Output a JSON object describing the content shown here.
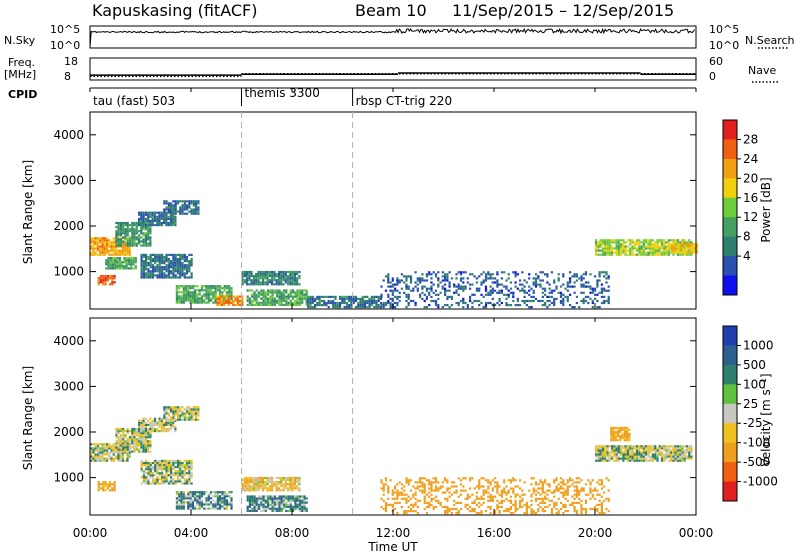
{
  "header": {
    "station": "Kapuskasing (fitACF)",
    "beam": "Beam 10",
    "date_range": "11/Sep/2015 – 12/Sep/2015"
  },
  "strips": {
    "nsky": {
      "label": "N.Sky",
      "right_label": "N.Search",
      "left_ticks": [
        "10^5",
        "10^0"
      ],
      "right_ticks": [
        "10^5",
        "10^0"
      ]
    },
    "freq": {
      "label": "Freq.",
      "unit": "[MHz]",
      "left_ticks": [
        "18",
        "8"
      ],
      "right_ticks": [
        "60",
        "0"
      ],
      "right_label": "Nave",
      "freq_segments": [
        {
          "start": 0.0,
          "end": 6.0,
          "mhz": 10.2
        },
        {
          "start": 6.0,
          "end": 12.2,
          "mhz": 10.6
        },
        {
          "start": 12.2,
          "end": 21.8,
          "mhz": 11.2
        },
        {
          "start": 21.8,
          "end": 24.0,
          "mhz": 10.6
        }
      ],
      "nave_segments": [
        {
          "start": 0.0,
          "end": 6.0,
          "value": 10
        },
        {
          "start": 6.0,
          "end": 24.0,
          "value": 17
        }
      ]
    },
    "cpid": {
      "label": "CPID",
      "modes": [
        {
          "name": "tau (fast) 503",
          "start": 0.0
        },
        {
          "name": "themis 3300",
          "start": 6.0
        },
        {
          "name": "rbsp CT-trig 220",
          "start": 10.4
        }
      ]
    }
  },
  "panels": {
    "power": {
      "ylabel": "Slant Range [km]",
      "cbar_label": "Power [dB]",
      "cbar_ticks": [
        "28",
        "24",
        "20",
        "16",
        "12",
        "8",
        "4"
      ],
      "colors": [
        "#1010ee",
        "#2c50b0",
        "#2f7f6f",
        "#44a060",
        "#6ccc3a",
        "#f0d010",
        "#f0a010",
        "#f06010",
        "#e02020"
      ]
    },
    "velocity": {
      "ylabel": "Slant Range [km]",
      "cbar_label": "Velocity [m s⁻¹]",
      "cbar_ticks": [
        "1000",
        "500",
        "100",
        "25",
        "-25",
        "-100",
        "-500",
        "-1000"
      ],
      "colors": [
        "#2040b0",
        "#2c6090",
        "#2f7f6f",
        "#60c040",
        "#c8c8c0",
        "#f0c020",
        "#f0a020",
        "#f06010",
        "#e02020"
      ]
    }
  },
  "chart_data": {
    "type": "heatmap",
    "title": "Kapuskasing (fitACF)  Beam 10  11/Sep/2015 – 12/Sep/2015",
    "xlabel": "Time UT",
    "x_ticks": [
      "00:00",
      "04:00",
      "08:00",
      "12:00",
      "16:00",
      "20:00",
      "00:00"
    ],
    "xlim": [
      0,
      24
    ],
    "ylabel": "Slant Range [km]",
    "ylim": [
      180,
      4500
    ],
    "y_ticks": [
      1000,
      2000,
      3000,
      4000
    ],
    "mode_changes_ut": [
      6.0,
      10.4
    ],
    "power_regions": [
      {
        "t0": 0.0,
        "t1": 1.6,
        "r0": 1350,
        "r1": 1750,
        "db": 22
      },
      {
        "t0": 0.3,
        "t1": 1.0,
        "r0": 700,
        "r1": 900,
        "db": 26
      },
      {
        "t0": 0.6,
        "t1": 1.8,
        "r0": 1050,
        "r1": 1300,
        "db": 12
      },
      {
        "t0": 1.0,
        "t1": 2.4,
        "r0": 1550,
        "r1": 2050,
        "db": 10
      },
      {
        "t0": 1.9,
        "t1": 3.4,
        "r0": 2000,
        "r1": 2300,
        "db": 6
      },
      {
        "t0": 2.9,
        "t1": 4.3,
        "r0": 2250,
        "r1": 2550,
        "db": 6
      },
      {
        "t0": 2.0,
        "t1": 4.0,
        "r0": 850,
        "r1": 1350,
        "db": 6
      },
      {
        "t0": 3.4,
        "t1": 5.6,
        "r0": 300,
        "r1": 700,
        "db": 12
      },
      {
        "t0": 5.0,
        "t1": 6.0,
        "r0": 250,
        "r1": 450,
        "db": 24
      },
      {
        "t0": 6.0,
        "t1": 8.3,
        "r0": 700,
        "r1": 1000,
        "db": 8
      },
      {
        "t0": 6.2,
        "t1": 8.6,
        "r0": 250,
        "r1": 600,
        "db": 12
      },
      {
        "t0": 8.6,
        "t1": 11.5,
        "r0": 200,
        "r1": 450,
        "db": 6
      },
      {
        "t0": 11.5,
        "t1": 20.5,
        "r0": 200,
        "r1": 1000,
        "db": 5
      },
      {
        "t0": 20.0,
        "t1": 23.8,
        "r0": 1350,
        "r1": 1700,
        "db": 16
      },
      {
        "t0": 23.0,
        "t1": 24.0,
        "r0": 1400,
        "r1": 1600,
        "db": 20
      }
    ],
    "velocity_regions": [
      {
        "t0": 0.0,
        "t1": 1.6,
        "r0": 1350,
        "r1": 1750,
        "v": 0
      },
      {
        "t0": 0.3,
        "t1": 1.0,
        "r0": 700,
        "r1": 900,
        "v": -150
      },
      {
        "t0": 1.0,
        "t1": 2.4,
        "r0": 1550,
        "r1": 2050,
        "v": 0
      },
      {
        "t0": 1.9,
        "t1": 3.4,
        "r0": 2000,
        "r1": 2300,
        "v": 0
      },
      {
        "t0": 2.9,
        "t1": 4.3,
        "r0": 2250,
        "r1": 2550,
        "v": 0
      },
      {
        "t0": 2.0,
        "t1": 4.0,
        "r0": 850,
        "r1": 1350,
        "v": 0
      },
      {
        "t0": 3.4,
        "t1": 5.6,
        "r0": 300,
        "r1": 700,
        "v": 60
      },
      {
        "t0": 6.0,
        "t1": 8.3,
        "r0": 700,
        "r1": 1000,
        "v": -60
      },
      {
        "t0": 6.2,
        "t1": 8.6,
        "r0": 250,
        "r1": 600,
        "v": 80
      },
      {
        "t0": 11.5,
        "t1": 20.5,
        "r0": 200,
        "r1": 1000,
        "v": -200
      },
      {
        "t0": 20.0,
        "t1": 23.8,
        "r0": 1350,
        "r1": 1700,
        "v": 0
      },
      {
        "t0": 20.6,
        "t1": 21.4,
        "r0": 1800,
        "r1": 2100,
        "v": -150
      }
    ]
  }
}
